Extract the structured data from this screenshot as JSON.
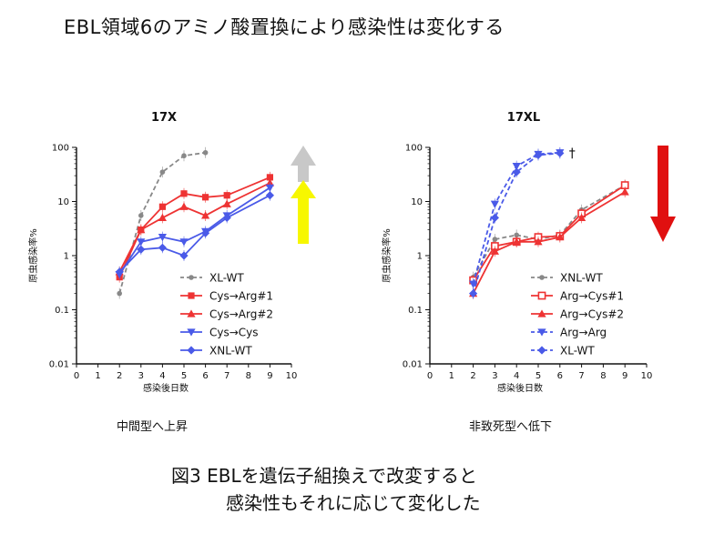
{
  "page_title": "EBL領域6のアミノ酸置換により感染性は変化する",
  "caption_line1": "図3 EBLを遺伝子組換えで改変すると",
  "caption_line2": "感染性もそれに応じて変化した",
  "chart_data": [
    {
      "type": "line",
      "title": "17X",
      "xlabel": "感染後日数",
      "ylabel": "原虫感染率%",
      "xlim": [
        0,
        10
      ],
      "ylim": [
        0.01,
        100
      ],
      "yscale": "log",
      "xticks": [
        "0",
        "1",
        "2",
        "3",
        "4",
        "5",
        "6",
        "7",
        "8",
        "9",
        "10"
      ],
      "yticks": [
        "0.01",
        "0.1",
        "1",
        "10",
        "100"
      ],
      "legend_position": "bottom-right",
      "note": "中間型へ上昇",
      "arrow": {
        "direction": "up",
        "colors": [
          "#c8c8c8",
          "#f7f700"
        ]
      },
      "series": [
        {
          "name": "XL-WT",
          "color": "#888888",
          "dash": true,
          "marker": "circle",
          "x": [
            2,
            3,
            4,
            5,
            6
          ],
          "y": [
            0.2,
            5.5,
            35,
            70,
            80
          ]
        },
        {
          "name": "Cys→Arg#1",
          "color": "#ee3333",
          "dash": false,
          "marker": "square",
          "x": [
            2,
            3,
            4,
            5,
            6,
            7,
            9
          ],
          "y": [
            0.4,
            3.0,
            8.0,
            14,
            12,
            13,
            28
          ]
        },
        {
          "name": "Cys→Arg#2",
          "color": "#ee3333",
          "dash": false,
          "marker": "triangle",
          "x": [
            2,
            3,
            4,
            5,
            6,
            7,
            9
          ],
          "y": [
            0.5,
            3.0,
            5.0,
            8.0,
            5.5,
            9.0,
            22
          ]
        },
        {
          "name": "Cys→Cys",
          "color": "#4a5ae8",
          "dash": false,
          "marker": "triangle-down",
          "x": [
            2,
            3,
            4,
            5,
            6,
            7,
            9
          ],
          "y": [
            0.45,
            1.8,
            2.2,
            1.8,
            2.8,
            5.5,
            18
          ]
        },
        {
          "name": "XNL-WT",
          "color": "#4a5ae8",
          "dash": false,
          "marker": "diamond",
          "x": [
            2,
            3,
            4,
            5,
            6,
            7,
            9
          ],
          "y": [
            0.5,
            1.3,
            1.4,
            1.0,
            2.6,
            5.0,
            13
          ]
        }
      ]
    },
    {
      "type": "line",
      "title": "17XL",
      "xlabel": "感染後日数",
      "ylabel": "原虫感染率%",
      "xlim": [
        0,
        10
      ],
      "ylim": [
        0.01,
        100
      ],
      "yscale": "log",
      "xticks": [
        "0",
        "1",
        "2",
        "3",
        "4",
        "5",
        "6",
        "7",
        "8",
        "9",
        "10"
      ],
      "yticks": [
        "0.01",
        "0.1",
        "1",
        "10",
        "100"
      ],
      "legend_position": "bottom-right",
      "note": "非致死型へ低下",
      "annotation": "†",
      "arrow": {
        "direction": "down",
        "colors": [
          "#e01010"
        ]
      },
      "series": [
        {
          "name": "XNL-WT",
          "color": "#888888",
          "dash": true,
          "marker": "circle",
          "x": [
            2,
            3,
            4,
            5,
            6,
            7,
            9
          ],
          "y": [
            0.4,
            2.0,
            2.4,
            2.0,
            2.4,
            7.0,
            20
          ]
        },
        {
          "name": "Arg→Cys#1",
          "color": "#ee3333",
          "dash": false,
          "marker": "square-open",
          "x": [
            2,
            3,
            4,
            5,
            6,
            7,
            9
          ],
          "y": [
            0.35,
            1.5,
            1.8,
            2.2,
            2.3,
            6.0,
            20
          ]
        },
        {
          "name": "Arg→Cys#2",
          "color": "#ee3333",
          "dash": false,
          "marker": "triangle",
          "x": [
            2,
            3,
            4,
            5,
            6,
            7,
            9
          ],
          "y": [
            0.2,
            1.2,
            1.8,
            1.8,
            2.2,
            5.0,
            15
          ]
        },
        {
          "name": "Arg→Arg",
          "color": "#4a5ae8",
          "dash": true,
          "marker": "triangle-down",
          "x": [
            2,
            3,
            4,
            5,
            6
          ],
          "y": [
            0.3,
            9.0,
            45,
            75,
            80
          ]
        },
        {
          "name": "XL-WT",
          "color": "#4a5ae8",
          "dash": true,
          "marker": "diamond",
          "x": [
            2,
            3,
            4,
            5,
            6
          ],
          "y": [
            0.2,
            5.0,
            35,
            72,
            78
          ]
        }
      ]
    }
  ]
}
